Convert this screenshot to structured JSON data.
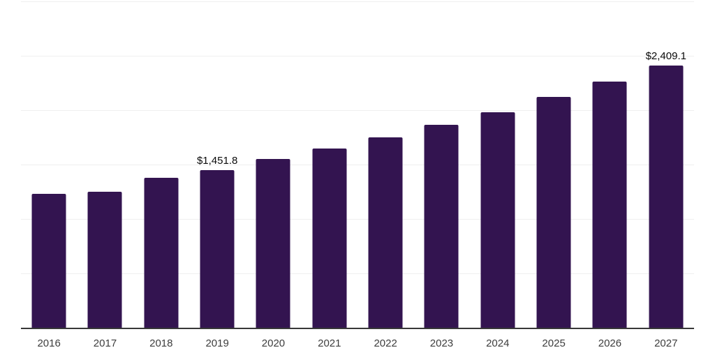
{
  "chart_data": {
    "type": "bar",
    "title": "",
    "xlabel": "",
    "ylabel": "",
    "categories": [
      "2016",
      "2017",
      "2018",
      "2019",
      "2020",
      "2021",
      "2022",
      "2023",
      "2024",
      "2025",
      "2026",
      "2027"
    ],
    "values": [
      1229,
      1248,
      1376,
      1451.8,
      1550,
      1646,
      1752,
      1864,
      1983,
      2122,
      2265,
      2409.1
    ],
    "point_labels": [
      "",
      "",
      "",
      "$1,451.8",
      "",
      "",
      "",
      "",
      "",
      "",
      "",
      "$2,409.1"
    ],
    "ylim": [
      0,
      3000
    ],
    "gridline_step": 500,
    "grid": "horizontal",
    "y_axis_tick_labels": "none",
    "legend": "none",
    "colors": {
      "bar": "#331450",
      "gridline": "#efefef",
      "axis_line": "#383838",
      "tick_label": "#3d3d3d",
      "data_label": "#0a0a0a",
      "background": "#ffffff"
    }
  }
}
